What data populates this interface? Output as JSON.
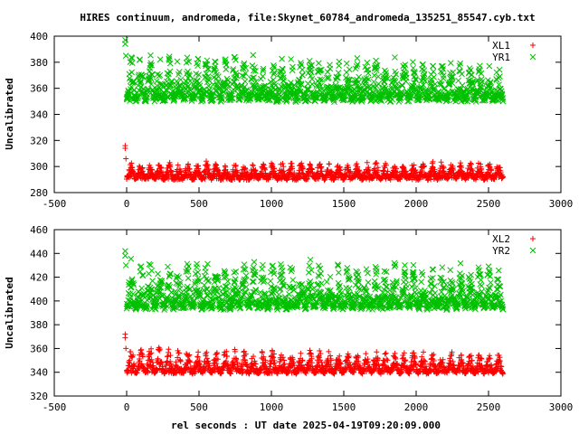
{
  "title": "HIRES continuum, andromeda, file:Skynet_60784_andromeda_135251_85547.cyb.txt",
  "xlabel": "rel seconds : UT date 2025-04-19T09:20:09.000",
  "colors": {
    "red": "#ff0000",
    "green": "#00c000",
    "axis": "#000000",
    "background": "#ffffff"
  },
  "chart_data": [
    {
      "type": "scatter",
      "xlim": [
        -500,
        3000
      ],
      "ylim": [
        280,
        400
      ],
      "xticks": [
        -500,
        0,
        500,
        1000,
        1500,
        2000,
        2500,
        3000
      ],
      "yticks": [
        280,
        300,
        320,
        340,
        360,
        380,
        400
      ],
      "ylabel": "Uncalibrated",
      "legend_position": "top-right",
      "series": [
        {
          "name": "XL1",
          "marker": "plus",
          "color": "#ff0000",
          "x_range": [
            0,
            2600
          ],
          "period_s": 65,
          "baseline": 291,
          "amplitude": 12,
          "noise": 3,
          "outliers": [
            {
              "x": -10,
              "y": 316
            },
            {
              "x": -10,
              "y": 314
            },
            {
              "x": -5,
              "y": 306
            }
          ]
        },
        {
          "name": "YR1",
          "marker": "cross",
          "color": "#00c000",
          "x_range": [
            0,
            2600
          ],
          "period_s": 65,
          "baseline": 352,
          "amplitude": 36,
          "amplitude_end": 28,
          "noise": 5,
          "outliers": [
            {
              "x": -10,
              "y": 397
            },
            {
              "x": -10,
              "y": 394
            },
            {
              "x": -5,
              "y": 385
            }
          ]
        }
      ]
    },
    {
      "type": "scatter",
      "xlim": [
        -500,
        3000
      ],
      "ylim": [
        320,
        460
      ],
      "xticks": [
        -500,
        0,
        500,
        1000,
        1500,
        2000,
        2500,
        3000
      ],
      "yticks": [
        320,
        340,
        360,
        380,
        400,
        420,
        440,
        460
      ],
      "ylabel": "Uncalibrated",
      "legend_position": "top-right",
      "series": [
        {
          "name": "XL2",
          "marker": "plus",
          "color": "#ff0000",
          "x_range": [
            0,
            2600
          ],
          "period_s": 65,
          "baseline": 340,
          "amplitude": 22,
          "amplitude_end": 16,
          "noise": 3,
          "outliers": [
            {
              "x": -10,
              "y": 372
            },
            {
              "x": -10,
              "y": 369
            },
            {
              "x": -5,
              "y": 360
            }
          ]
        },
        {
          "name": "YR2",
          "marker": "cross",
          "color": "#00c000",
          "x_range": [
            0,
            2600
          ],
          "period_s": 65,
          "baseline": 395,
          "amplitude": 42,
          "amplitude_end": 35,
          "noise": 5,
          "outliers": [
            {
              "x": -10,
              "y": 442
            },
            {
              "x": -10,
              "y": 438
            },
            {
              "x": -5,
              "y": 430
            }
          ]
        }
      ]
    }
  ]
}
